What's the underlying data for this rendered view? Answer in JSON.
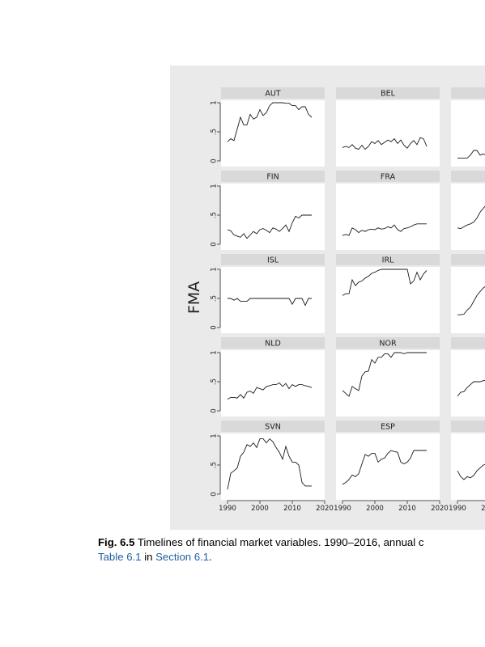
{
  "caption": {
    "label": "Fig. 6.5",
    "text": " Timelines of financial market variables. 1990–2016, annual c",
    "link1": "Table 6.1",
    "mid": " in ",
    "link2": "Section 6.1",
    "end": "."
  },
  "colors": {
    "panel_bg": "#eaeaea",
    "plot_bg": "#ffffff",
    "strip_bg": "#d9d9d9",
    "line": "#1a1a1a"
  },
  "chart_data": {
    "type": "line",
    "ylabel": "FMA",
    "xlim": [
      1988,
      2020
    ],
    "ylim": [
      0,
      1
    ],
    "x_ticks": [
      1990,
      2000,
      2010,
      2020
    ],
    "x_tick_labels": [
      "1990",
      "2000",
      "2010",
      "2020"
    ],
    "y_ticks": [
      0,
      0.5,
      1
    ],
    "y_tick_labels": [
      "0",
      ".5",
      "1"
    ],
    "grid": false,
    "x": [
      1990,
      1991,
      1992,
      1993,
      1994,
      1995,
      1996,
      1997,
      1998,
      1999,
      2000,
      2001,
      2002,
      2003,
      2004,
      2005,
      2006,
      2007,
      2008,
      2009,
      2010,
      2011,
      2012,
      2013,
      2014,
      2015,
      2016
    ],
    "panels": [
      {
        "name": "AUT",
        "values": [
          0.33,
          0.38,
          0.35,
          0.55,
          0.75,
          0.62,
          0.62,
          0.8,
          0.72,
          0.75,
          0.88,
          0.78,
          0.83,
          0.95,
          1.0,
          1.0,
          1.0,
          1.0,
          0.99,
          0.99,
          0.95,
          0.95,
          0.88,
          0.93,
          0.93,
          0.8,
          0.75
        ]
      },
      {
        "name": "BEL",
        "values": [
          0.23,
          0.25,
          0.23,
          0.28,
          0.22,
          0.2,
          0.27,
          0.2,
          0.25,
          0.33,
          0.3,
          0.35,
          0.28,
          0.32,
          0.36,
          0.33,
          0.38,
          0.3,
          0.36,
          0.27,
          0.22,
          0.3,
          0.35,
          0.28,
          0.4,
          0.38,
          0.25
        ]
      },
      {
        "name": "",
        "values": [
          0.05,
          0.05,
          0.05,
          0.05,
          0.1,
          0.18,
          0.18,
          0.1,
          0.12,
          0.1,
          0.14,
          0.12,
          0.15,
          0.12,
          0.16,
          0.14,
          0.12,
          0.15,
          0.14,
          0.12,
          0.14,
          0.13,
          0.15,
          0.14,
          0.13,
          0.14,
          0.15
        ]
      },
      {
        "name": "FIN",
        "values": [
          0.25,
          0.23,
          0.16,
          0.14,
          0.12,
          0.18,
          0.1,
          0.16,
          0.22,
          0.18,
          0.25,
          0.27,
          0.24,
          0.2,
          0.28,
          0.26,
          0.22,
          0.27,
          0.33,
          0.22,
          0.37,
          0.48,
          0.45,
          0.5,
          0.5,
          0.5,
          0.5
        ]
      },
      {
        "name": "FRA",
        "values": [
          0.15,
          0.17,
          0.15,
          0.28,
          0.25,
          0.2,
          0.24,
          0.22,
          0.25,
          0.26,
          0.25,
          0.28,
          0.26,
          0.27,
          0.3,
          0.28,
          0.33,
          0.25,
          0.22,
          0.27,
          0.28,
          0.3,
          0.33,
          0.35,
          0.35,
          0.35,
          0.35
        ]
      },
      {
        "name": "",
        "values": [
          0.28,
          0.27,
          0.3,
          0.33,
          0.35,
          0.38,
          0.45,
          0.55,
          0.62,
          0.68,
          0.72,
          0.75,
          0.78,
          0.8,
          0.82,
          0.83,
          0.85,
          0.85,
          0.86,
          0.86,
          0.87,
          0.87,
          0.88,
          0.88,
          0.88,
          0.88,
          0.88
        ]
      },
      {
        "name": "ISL",
        "values": [
          0.5,
          0.5,
          0.47,
          0.5,
          0.45,
          0.45,
          0.45,
          0.5,
          0.5,
          0.5,
          0.5,
          0.5,
          0.5,
          0.5,
          0.5,
          0.5,
          0.5,
          0.5,
          0.5,
          0.5,
          0.4,
          0.5,
          0.5,
          0.5,
          0.38,
          0.5,
          0.5
        ]
      },
      {
        "name": "IRL",
        "values": [
          0.55,
          0.58,
          0.58,
          0.82,
          0.72,
          0.78,
          0.8,
          0.85,
          0.88,
          0.93,
          0.95,
          0.98,
          1.0,
          1.0,
          1.0,
          1.0,
          1.0,
          1.0,
          1.0,
          1.0,
          1.0,
          0.75,
          0.8,
          0.95,
          0.82,
          0.92,
          0.98
        ]
      },
      {
        "name": "",
        "values": [
          0.22,
          0.22,
          0.23,
          0.3,
          0.35,
          0.45,
          0.55,
          0.62,
          0.68,
          0.72,
          0.75,
          0.78,
          0.8,
          0.8,
          0.82,
          0.82,
          0.84,
          0.84,
          0.85,
          0.85,
          0.85,
          0.86,
          0.86,
          0.86,
          0.86,
          0.86,
          0.86
        ]
      },
      {
        "name": "NLD",
        "values": [
          0.2,
          0.23,
          0.23,
          0.22,
          0.28,
          0.22,
          0.32,
          0.34,
          0.3,
          0.4,
          0.38,
          0.36,
          0.42,
          0.43,
          0.45,
          0.45,
          0.48,
          0.42,
          0.47,
          0.38,
          0.45,
          0.42,
          0.45,
          0.45,
          0.43,
          0.42,
          0.4
        ]
      },
      {
        "name": "NOR",
        "values": [
          0.35,
          0.3,
          0.25,
          0.42,
          0.38,
          0.35,
          0.6,
          0.67,
          0.68,
          0.88,
          0.82,
          0.92,
          0.92,
          0.98,
          0.98,
          0.92,
          1.0,
          1.0,
          1.0,
          0.98,
          1.0,
          1.0,
          1.0,
          1.0,
          1.0,
          1.0,
          1.0
        ]
      },
      {
        "name": "",
        "values": [
          0.25,
          0.32,
          0.33,
          0.4,
          0.45,
          0.5,
          0.5,
          0.5,
          0.52,
          0.52,
          0.53,
          0.53,
          0.53,
          0.54,
          0.54,
          0.54,
          0.55,
          0.55,
          0.55,
          0.55,
          0.55,
          0.55,
          0.55,
          0.55,
          0.55,
          0.55,
          0.55
        ]
      },
      {
        "name": "SVN",
        "values": [
          0.08,
          0.36,
          0.4,
          0.45,
          0.65,
          0.72,
          0.85,
          0.82,
          0.88,
          0.8,
          0.95,
          0.95,
          0.88,
          0.95,
          0.9,
          0.8,
          0.72,
          0.6,
          0.82,
          0.65,
          0.55,
          0.55,
          0.5,
          0.2,
          0.14,
          0.14,
          0.14
        ]
      },
      {
        "name": "ESP",
        "values": [
          0.17,
          0.2,
          0.25,
          0.33,
          0.3,
          0.35,
          0.52,
          0.68,
          0.65,
          0.7,
          0.7,
          0.55,
          0.6,
          0.62,
          0.7,
          0.75,
          0.73,
          0.72,
          0.55,
          0.52,
          0.55,
          0.62,
          0.75,
          0.75,
          0.75,
          0.75,
          0.75
        ]
      },
      {
        "name": "",
        "values": [
          0.4,
          0.3,
          0.25,
          0.3,
          0.28,
          0.32,
          0.4,
          0.45,
          0.5,
          0.52,
          0.55,
          0.55,
          0.56,
          0.57,
          0.57,
          0.58,
          0.58,
          0.58,
          0.58,
          0.59,
          0.59,
          0.59,
          0.59,
          0.59,
          0.59,
          0.59,
          0.59
        ]
      }
    ]
  }
}
